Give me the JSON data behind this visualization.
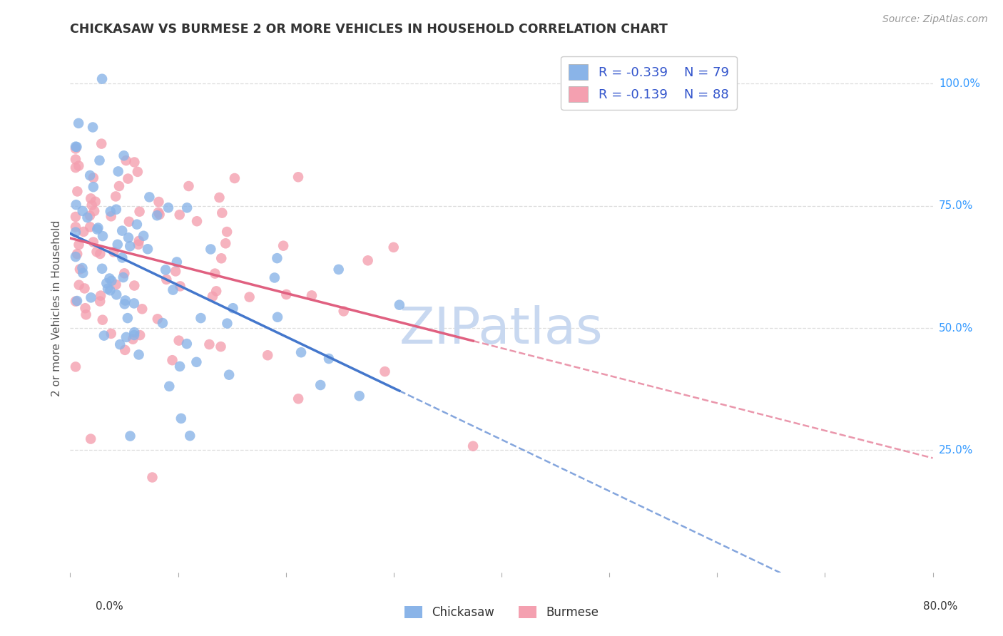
{
  "title": "CHICKASAW VS BURMESE 2 OR MORE VEHICLES IN HOUSEHOLD CORRELATION CHART",
  "source": "Source: ZipAtlas.com",
  "ylabel": "2 or more Vehicles in Household",
  "yticks": [
    "25.0%",
    "50.0%",
    "75.0%",
    "100.0%"
  ],
  "ytick_vals": [
    0.25,
    0.5,
    0.75,
    1.0
  ],
  "xlim": [
    0.0,
    0.8
  ],
  "ylim": [
    0.0,
    1.08
  ],
  "chickasaw_R": -0.339,
  "chickasaw_N": 79,
  "burmese_R": -0.139,
  "burmese_N": 88,
  "chickasaw_color": "#8ab4e8",
  "burmese_color": "#f4a0b0",
  "trend_chickasaw_color": "#4477cc",
  "trend_burmese_color": "#e06080",
  "watermark_color": "#c8d8f0",
  "background_color": "#ffffff",
  "legend_text_color": "#3355cc",
  "grid_color": "#dddddd",
  "seed_chickasaw": 7,
  "seed_burmese": 99
}
